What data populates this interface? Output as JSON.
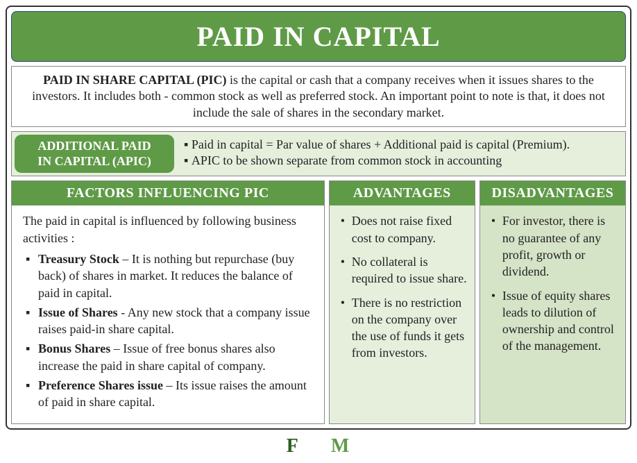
{
  "title": "PAID IN CAPITAL",
  "intro": {
    "lead": "PAID IN SHARE CAPITAL (PIC)",
    "rest": " is the capital or cash that a company receives when it issues shares to the investors. It includes both - common stock as well as preferred stock. An important point to note is that, it does not include the sale of shares in the secondary market."
  },
  "apic": {
    "label_line1": "ADDITIONAL PAID",
    "label_line2": "IN CAPITAL (APIC)",
    "points": [
      "Paid in capital = Par value of shares + Additional paid is capital (Premium).",
      "APIC to be shown separate from common stock in accounting"
    ]
  },
  "factors": {
    "header": "FACTORS INFLUENCING PIC",
    "intro": "The paid in capital is influenced by following business activities :",
    "items": [
      {
        "name": "Treasury Stock",
        "desc": " – It is nothing but repurchase (buy back) of shares in market. It reduces the balance of paid in capital."
      },
      {
        "name": "Issue of Shares",
        "desc": " -  Any new stock that a company issue raises paid-in share capital."
      },
      {
        "name": "Bonus Shares",
        "desc": " – Issue of free bonus shares also increase the paid in share capital of company."
      },
      {
        "name": "Preference Shares issue",
        "desc": " – Its issue raises the amount of paid in share capital."
      }
    ]
  },
  "advantages": {
    "header": "ADVANTAGES",
    "items": [
      "Does not raise fixed cost to company.",
      "No collateral is required to issue share.",
      "There is no restriction on the company over the use of funds it gets from investors."
    ]
  },
  "disadvantages": {
    "header": "DISADVANTAGES",
    "items": [
      "For investor, there is no guarantee of any profit, growth or dividend.",
      "Issue of equity shares leads to dilution of ownership and control of the management."
    ]
  },
  "footer": {
    "f": "F",
    "m": "M"
  },
  "colors": {
    "accent": "#5f9a47",
    "light_panel": "#e5efdc",
    "light_panel2": "#d5e3c7"
  }
}
